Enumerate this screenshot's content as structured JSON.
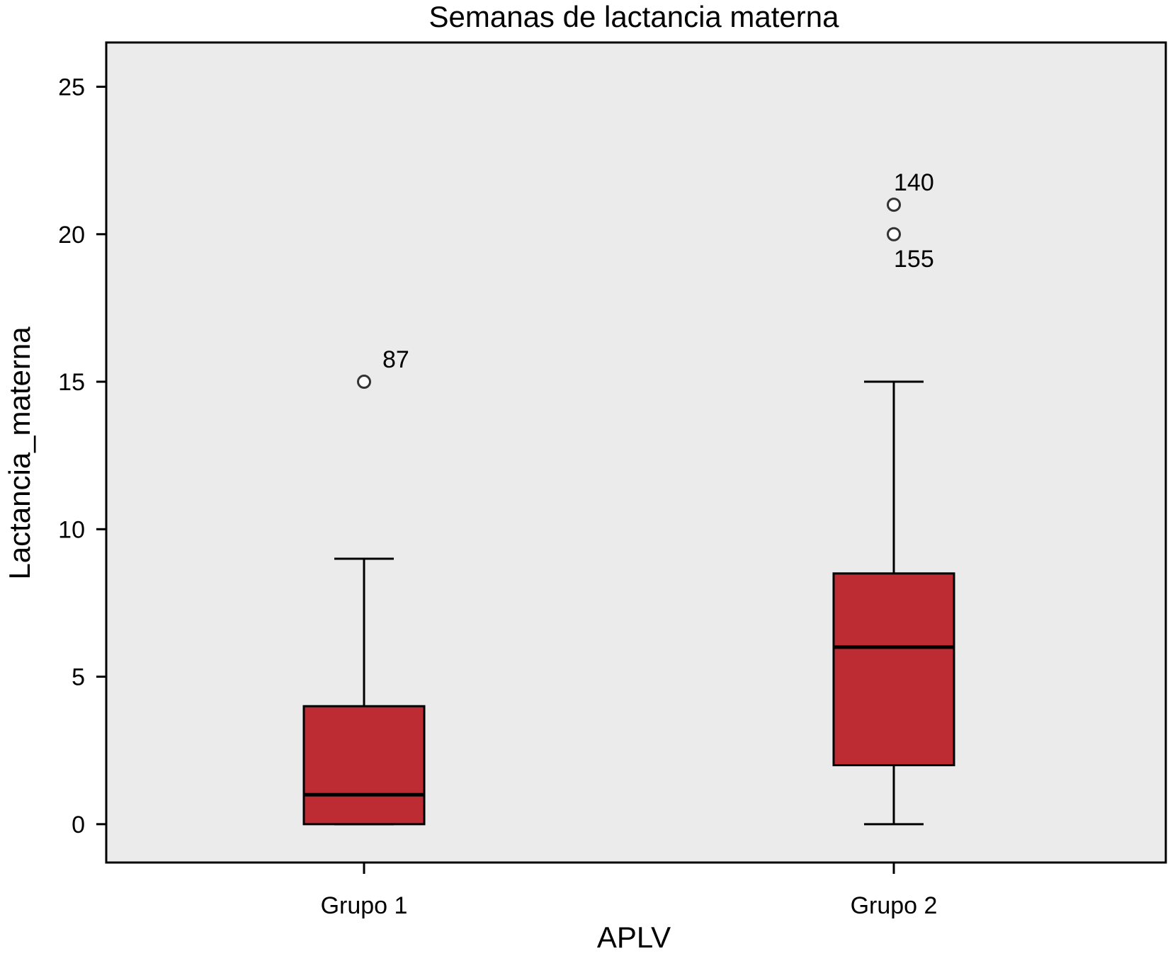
{
  "chart_data": {
    "type": "box",
    "title": "Semanas de lactancia materna",
    "xlabel": "APLV",
    "ylabel": "Lactancia_materna",
    "ylim": [
      -1.3,
      26.5
    ],
    "yticks": [
      0,
      5,
      10,
      15,
      20,
      25
    ],
    "grid": false,
    "colors": {
      "box_fill": "#bd2b33",
      "plot_bg": "#ebebeb",
      "stroke": "#000000"
    },
    "groups": [
      {
        "category": "Grupo 1",
        "whisker_low": 0,
        "q1": 0,
        "median": 1,
        "q3": 4,
        "whisker_high": 9,
        "outliers": [
          {
            "value": 15,
            "label": "87"
          }
        ]
      },
      {
        "category": "Grupo 2",
        "whisker_low": 0,
        "q1": 2,
        "median": 6,
        "q3": 8.5,
        "whisker_high": 15,
        "outliers": [
          {
            "value": 21,
            "label": "140"
          },
          {
            "value": 20,
            "label": "155"
          }
        ]
      }
    ]
  }
}
